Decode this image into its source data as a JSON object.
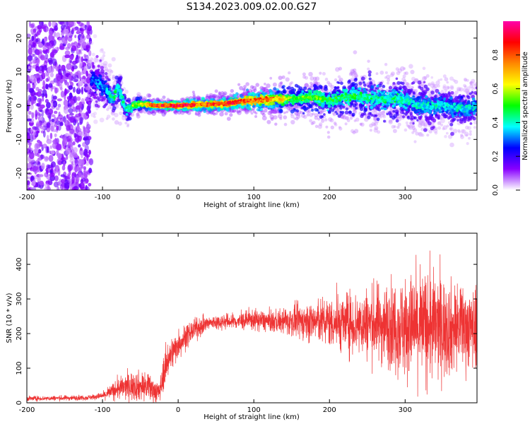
{
  "title": "S134.2023.009.02.00.G27",
  "chart_data": [
    {
      "type": "heatmap",
      "xlabel": "Height of straight line (km)",
      "ylabel": "Frequency (Hz)",
      "xlim": [
        -200,
        395
      ],
      "ylim": [
        -25,
        25
      ],
      "xticks": [
        -200,
        -100,
        0,
        100,
        200,
        300
      ],
      "xtick_labels": [
        "-200",
        "-100",
        "0",
        "100",
        "200",
        "300"
      ],
      "yticks": [
        -20,
        -10,
        0,
        10,
        20
      ],
      "ytick_labels": [
        "-20",
        "-10",
        "0",
        "10",
        "20"
      ],
      "ridge": {
        "x": [
          -115,
          -100,
          -90,
          -85,
          -80,
          -75,
          -70,
          -65,
          -60,
          -50,
          -30,
          0,
          30,
          60,
          90,
          120,
          150,
          180,
          200,
          230,
          260,
          290,
          320,
          350,
          380,
          395
        ],
        "y": [
          8,
          6,
          3,
          2,
          6,
          3,
          -1,
          -1,
          0,
          0.5,
          0,
          0,
          0.3,
          0.5,
          1.5,
          1.8,
          2,
          2.5,
          1.5,
          3,
          2,
          2,
          0,
          0,
          -1,
          0
        ],
        "spread": [
          6,
          5,
          4,
          4,
          4,
          4,
          3,
          2.5,
          2,
          1.5,
          1,
          1,
          1.5,
          1.5,
          2,
          2.5,
          3,
          3.5,
          4,
          4.5,
          5,
          5,
          5,
          5,
          4.5,
          4.5
        ],
        "peak_amplitude": [
          0.3,
          0.35,
          0.4,
          0.45,
          0.45,
          0.45,
          0.4,
          0.45,
          0.55,
          0.6,
          0.9,
          0.95,
          0.85,
          0.9,
          0.85,
          0.8,
          0.55,
          0.55,
          0.5,
          0.5,
          0.45,
          0.45,
          0.4,
          0.4,
          0.4,
          0.4
        ]
      },
      "noise_region_x": [
        -200,
        -115
      ],
      "colorbar": {
        "label": "Normalized spectral amplitude",
        "range": [
          0,
          1
        ],
        "ticks": [
          0.0,
          0.2,
          0.4,
          0.6,
          0.8
        ],
        "tick_labels": [
          "0.0",
          "0.2",
          "0.4",
          "0.6",
          "0.8"
        ],
        "colormap": [
          "#ffffff",
          "#8800ff",
          "#0000ff",
          "#00ffff",
          "#00ff00",
          "#ffff00",
          "#ff8800",
          "#ff0000",
          "#ff00aa"
        ]
      }
    },
    {
      "type": "line",
      "xlabel": "Height of straight line (km)",
      "ylabel": "SNR (10 * v/v)",
      "xlim": [
        -200,
        395
      ],
      "ylim": [
        0,
        490
      ],
      "xticks": [
        -200,
        -100,
        0,
        100,
        200,
        300
      ],
      "xtick_labels": [
        "-200",
        "-100",
        "0",
        "100",
        "200",
        "300"
      ],
      "yticks": [
        0,
        100,
        200,
        300,
        400
      ],
      "ytick_labels": [
        "0",
        "100",
        "200",
        "300",
        "400"
      ],
      "color": "#ee3333",
      "envelope": {
        "x": [
          -200,
          -120,
          -100,
          -80,
          -60,
          -40,
          -25,
          -15,
          0,
          20,
          40,
          60,
          80,
          100,
          120,
          140,
          160,
          180,
          200,
          220,
          240,
          260,
          280,
          300,
          320,
          340,
          360,
          380,
          395
        ],
        "mean": [
          12,
          15,
          20,
          40,
          50,
          45,
          30,
          120,
          170,
          210,
          230,
          235,
          235,
          240,
          235,
          235,
          235,
          235,
          235,
          230,
          230,
          230,
          225,
          220,
          220,
          220,
          215,
          220,
          215
        ],
        "spread": [
          6,
          6,
          8,
          25,
          35,
          35,
          25,
          45,
          35,
          25,
          18,
          18,
          20,
          25,
          25,
          30,
          40,
          50,
          60,
          70,
          80,
          90,
          100,
          120,
          130,
          130,
          110,
          100,
          90
        ]
      }
    }
  ]
}
